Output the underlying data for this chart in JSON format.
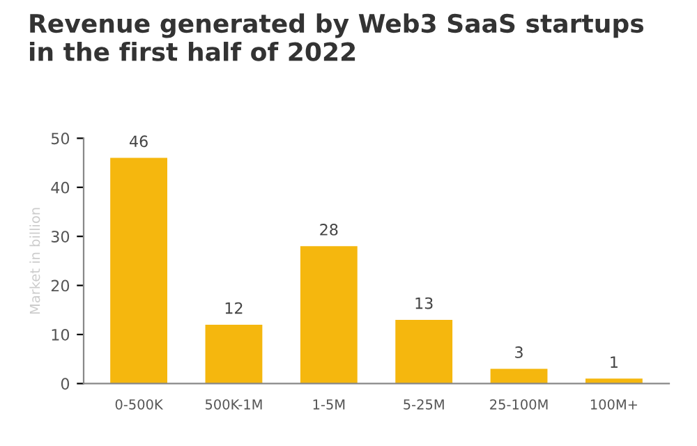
{
  "chart_data": {
    "type": "bar",
    "title": "Revenue generated by Web3 SaaS startups\nin the first half of 2022",
    "ylabel": "Market in billion",
    "categories": [
      "0-500K",
      "500K-1M",
      "1-5M",
      "5-25M",
      "25-100M",
      "100M+"
    ],
    "values": [
      46,
      12,
      28,
      13,
      3,
      1
    ],
    "color": "#f5b70e",
    "data_labels": true,
    "ylim": [
      0,
      50
    ],
    "yticks": [
      0,
      10,
      20,
      30,
      40,
      50
    ],
    "grid": false
  }
}
